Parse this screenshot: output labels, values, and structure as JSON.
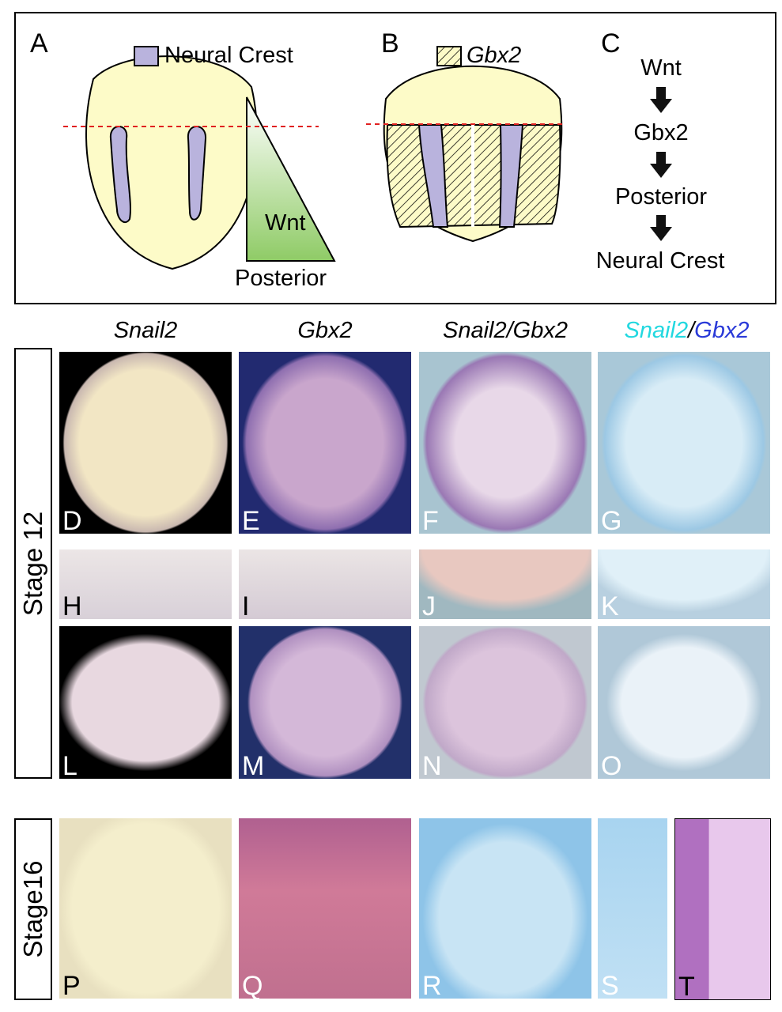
{
  "schematic": {
    "panel_A": {
      "letter": "A",
      "legend": "Neural Crest",
      "gradient_label1": "Wnt",
      "gradient_label2": "Posterior"
    },
    "panel_B": {
      "letter": "B",
      "legend": "Gbx2"
    },
    "panel_C": {
      "letter": "C",
      "steps": [
        "Wnt",
        "Gbx2",
        "Posterior",
        "Neural Crest"
      ]
    },
    "colors": {
      "embryo": "#fdfbc8",
      "neural_crest": "#b9b3dd",
      "wnt_gradient": "#9fd27a",
      "dashed_line": "#e02020"
    }
  },
  "columns": {
    "c1": "Snail2",
    "c2": "Gbx2",
    "c3": "Snail2/Gbx2",
    "c4a": "Snail2",
    "c4sep": "/",
    "c4b": "Gbx2",
    "c4a_color": "#22d8e0",
    "c4b_color": "#2a3ad8"
  },
  "stages": {
    "s12": "Stage 12",
    "s16": "Stage16"
  },
  "panels": [
    "D",
    "E",
    "F",
    "G",
    "H",
    "I",
    "J",
    "K",
    "L",
    "M",
    "N",
    "O",
    "P",
    "Q",
    "R",
    "S",
    "T"
  ]
}
